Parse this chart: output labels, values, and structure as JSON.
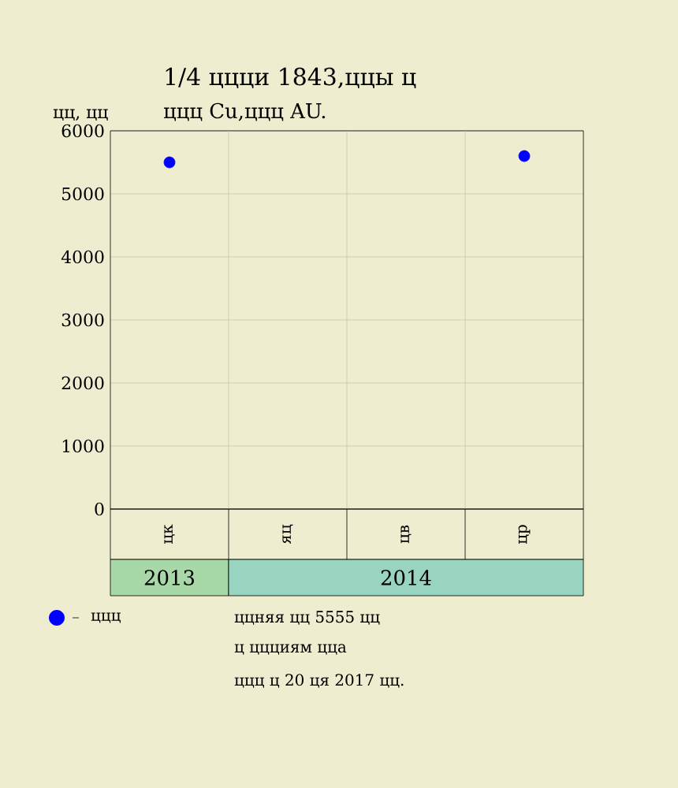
{
  "chart_data": {
    "type": "scatter",
    "title": "1/4 ццци 1843,ццы ц",
    "subtitle": "ццц Cu,ццц AU.",
    "ylabel": "цц, цц",
    "categories": [
      "цк",
      "яц",
      "цв",
      "цр"
    ],
    "series": [
      {
        "name": "ццц",
        "color": "#0000ff",
        "values": [
          5500,
          null,
          null,
          5600
        ]
      }
    ],
    "ylim": [
      0,
      6000
    ],
    "yticks": [
      0,
      1000,
      2000,
      3000,
      4000,
      5000,
      6000
    ],
    "grid": true,
    "legend": "bottom",
    "marker": "circle",
    "annotations": [
      "2013",
      "2014",
      "ццняя цц 5555 цц",
      "ц ццциям цца",
      "ццц ц 20 ця 2017 цц."
    ]
  }
}
